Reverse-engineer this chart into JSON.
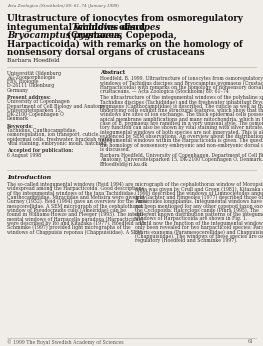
{
  "background_color": "#f0ede8",
  "journal_header": "Acta Zoologica (Stockholm) 80: 61–74 (January 1999)",
  "title_lines": [
    [
      "Ultrastructure of ionocytes from osmoregulatory",
      "normal"
    ],
    [
      "integumental windows of ",
      "normal",
      "Tachidius discipes",
      "italic",
      " and",
      "normal"
    ],
    [
      "Bryocamptus pygmaeus",
      "italic",
      " (Crustacea, Copepoda,",
      "normal"
    ],
    [
      "Harpacticoida) with remarks on the homology of",
      "normal"
    ],
    [
      "nonsensory dorsal organs of crustaceans",
      "normal"
    ]
  ],
  "author": "Barbara Hoedfeld",
  "affil": [
    "Universität Oldenburg",
    "AG-Zoomorphologie",
    "FBV, Biologie",
    "D-26111 Oldenburg",
    "Germany"
  ],
  "present_label": "Present address:",
  "present": [
    "University of Copenhagen",
    "Department of Cell Biology and Anatomy",
    "Universitetsparken 15,",
    "DK-2100 Copenhagen O",
    "Denmark"
  ],
  "keywords_label": "Keywords:",
  "keywords": [
    "Tachidius, Canthocamptidae,",
    "osmoregulation, ion transport, cuticle,",
    "epidermal cells, freshwater, brackish water,",
    "vital staining, embryonic moult, hatching"
  ],
  "accepted_label": "Accepted for publication:",
  "accepted_date": "6 August 1998",
  "abstract_label": "Abstract",
  "abstract_cite": [
    "Hoedfeld, B. 1999. Ultrastructure of ionocytes from osmoregulatory integumental",
    "windows of Tachidius discipes and Bryocamptus pygmaeus (Crustacea, Copepoda,",
    "Harpacticoida) with remarks on the homology of nonsensory dorsal organs of",
    "crustaceans. — Acta Zoologica (Stockholm) 80: 61–74"
  ],
  "abstract_body": [
    "The ultrastructure of the integumental windows of the polyhaline species",
    "Tachidius discipes (Tachidiidae) and the freshwater inhabitant Bryocamptus",
    "pygmaeus (Canthocamptidae) is described. The cuticle as well as the",
    "underlying cells exhibit fine structural features, which show that these",
    "windows are sites of ion exchange. The thick epidermal cells possess",
    "apical membrane amplifications and many mitochondria, which in the",
    "case of B. pygmaeus are ramified in a very unusual style. The osmoregula-",
    "tory function can also be shown by vital staining with silver nitrate. The",
    "integumental windows of both species are not innervated. This is also",
    "evidenced by SEM observations. An overview about the distribution of",
    "integumental windows within the Harpacticoida is given. The question of",
    "the homology of nonsensory embryonic and non-embryonic dorsal organs",
    "is discussed."
  ],
  "abstract_footer": [
    "Barbara Hoedfeld, University of Copenhagen, Department of Cell Biology and",
    "Anatomy, Universitetsparken 15, DK-2100 Copenhagen O, Denmark. E-mail:",
    "BHoedfeld@ri.ku.dk"
  ],
  "intro_label": "Introduction",
  "intro_col1": [
    "The so-called integumental windows (Reid 1994) are",
    "widespread among the Harpacticoida. Good descriptions",
    "of the integumental windows of the taxa Tachidiidae,",
    "Canthocamptidae, Miraciidae and Metisira were given by",
    "Gurney (1932). Reid (1994) gave an overview for the Para-",
    "mesocerellidae. A SEM micrograph of the cephalothorax",
    "window of Pseudocnudis culis (Ameiridae) can be",
    "found in Williams-Howze and Fleeger (1993). The integu-",
    "mental windows of Harpacella paradoxa (Harpacticidae)",
    "were described by Itô and Kitazaka (1977). Hoedfeld and",
    "Schminke (1997) provided light micrographs of the",
    "windows of Chappuisis reponsa (Chappuisiidae). A SEM"
  ],
  "intro_col2": [
    "micrograph of the cephalothorax window of Moropsillus",
    "nana was given by Crull and Green (1981). Kitazaka et al.",
    "(1990) described the windows of Limnocletodes angustula,",
    "and Gachter and Ringeoles (1977) described those of",
    "Ameiroides longiplanus. Integumental windows have",
    "not been mentioned for any other copepod taxon except",
    "the Cyclopoida: Halcyclops cande (Piura 1995). The",
    "different known distribution patterns of the integumental",
    "windows of Harpacticoida are shown in Fig. 1.",
    "   Until now the function of the integumental windows has",
    "only been revealed for two harpacticoid species: Parames-",
    "ocaris exanema (Paramesocerellidae) and Chappuisis reponsa",
    "(Chappuisiidae). The windows of these species are osmo-",
    "regulatory (Hoedfeld and Schminke 1997)."
  ],
  "copyright": "© 1999 The Royal Swedish Academy of Sciences",
  "page_num": "61"
}
